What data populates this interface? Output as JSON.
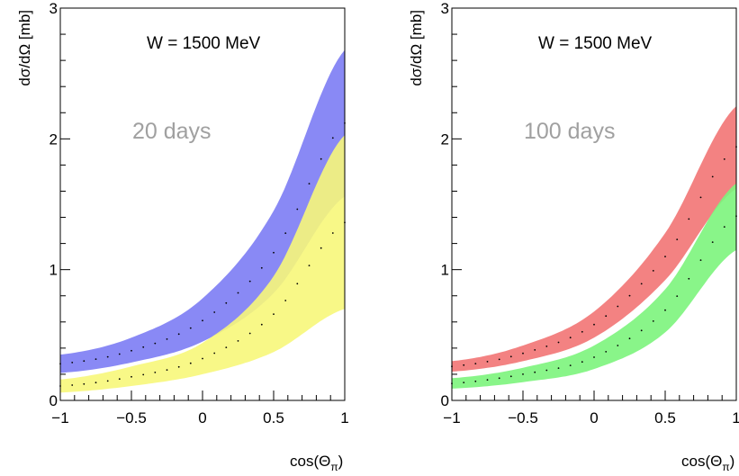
{
  "chart_data": [
    {
      "type": "area",
      "title": "W = 1500 MeV",
      "annotation": "20 days",
      "xlabel": "cos(Θ_π)",
      "ylabel": "dσ/dΩ [mb]",
      "xlim": [
        -1,
        1
      ],
      "ylim": [
        0,
        3
      ],
      "xticks": [
        "−1",
        "−0.5",
        "0",
        "0.5",
        "1"
      ],
      "yticks": [
        "0",
        "1",
        "2",
        "3"
      ],
      "grid": false,
      "x": [
        -1,
        -0.5,
        0,
        0.5,
        1
      ],
      "series": [
        {
          "color": "#7c7cf4",
          "lower": [
            0.21,
            0.29,
            0.45,
            0.82,
            1.56
          ],
          "upper": [
            0.35,
            0.48,
            0.78,
            1.45,
            2.68
          ],
          "center": [
            0.28,
            0.38,
            0.61,
            1.13,
            2.12
          ]
        },
        {
          "color": "#f7f77a",
          "lower": [
            0.06,
            0.11,
            0.2,
            0.37,
            0.7
          ],
          "upper": [
            0.16,
            0.26,
            0.44,
            0.95,
            2.03
          ],
          "center": [
            0.11,
            0.18,
            0.32,
            0.66,
            1.36
          ]
        }
      ]
    },
    {
      "type": "area",
      "title": "W = 1500 MeV",
      "annotation": "100 days",
      "xlabel": "cos(Θ_π)",
      "ylabel": "dσ/dΩ [mb]",
      "xlim": [
        -1,
        1
      ],
      "ylim": [
        0,
        3
      ],
      "xticks": [
        "−1",
        "−0.5",
        "0",
        "0.5",
        "1"
      ],
      "yticks": [
        "0",
        "1",
        "2",
        "3"
      ],
      "grid": false,
      "x": [
        -1,
        -0.5,
        0,
        0.5,
        1
      ],
      "series": [
        {
          "color": "#f27474",
          "lower": [
            0.22,
            0.3,
            0.48,
            0.92,
            1.62
          ],
          "upper": [
            0.3,
            0.42,
            0.68,
            1.28,
            2.25
          ],
          "center": [
            0.26,
            0.36,
            0.58,
            1.1,
            1.94
          ]
        },
        {
          "color": "#7cf47c",
          "lower": [
            0.09,
            0.14,
            0.24,
            0.52,
            1.15
          ],
          "upper": [
            0.17,
            0.25,
            0.42,
            0.85,
            1.66
          ],
          "center": [
            0.13,
            0.2,
            0.33,
            0.69,
            1.41
          ]
        }
      ]
    }
  ]
}
